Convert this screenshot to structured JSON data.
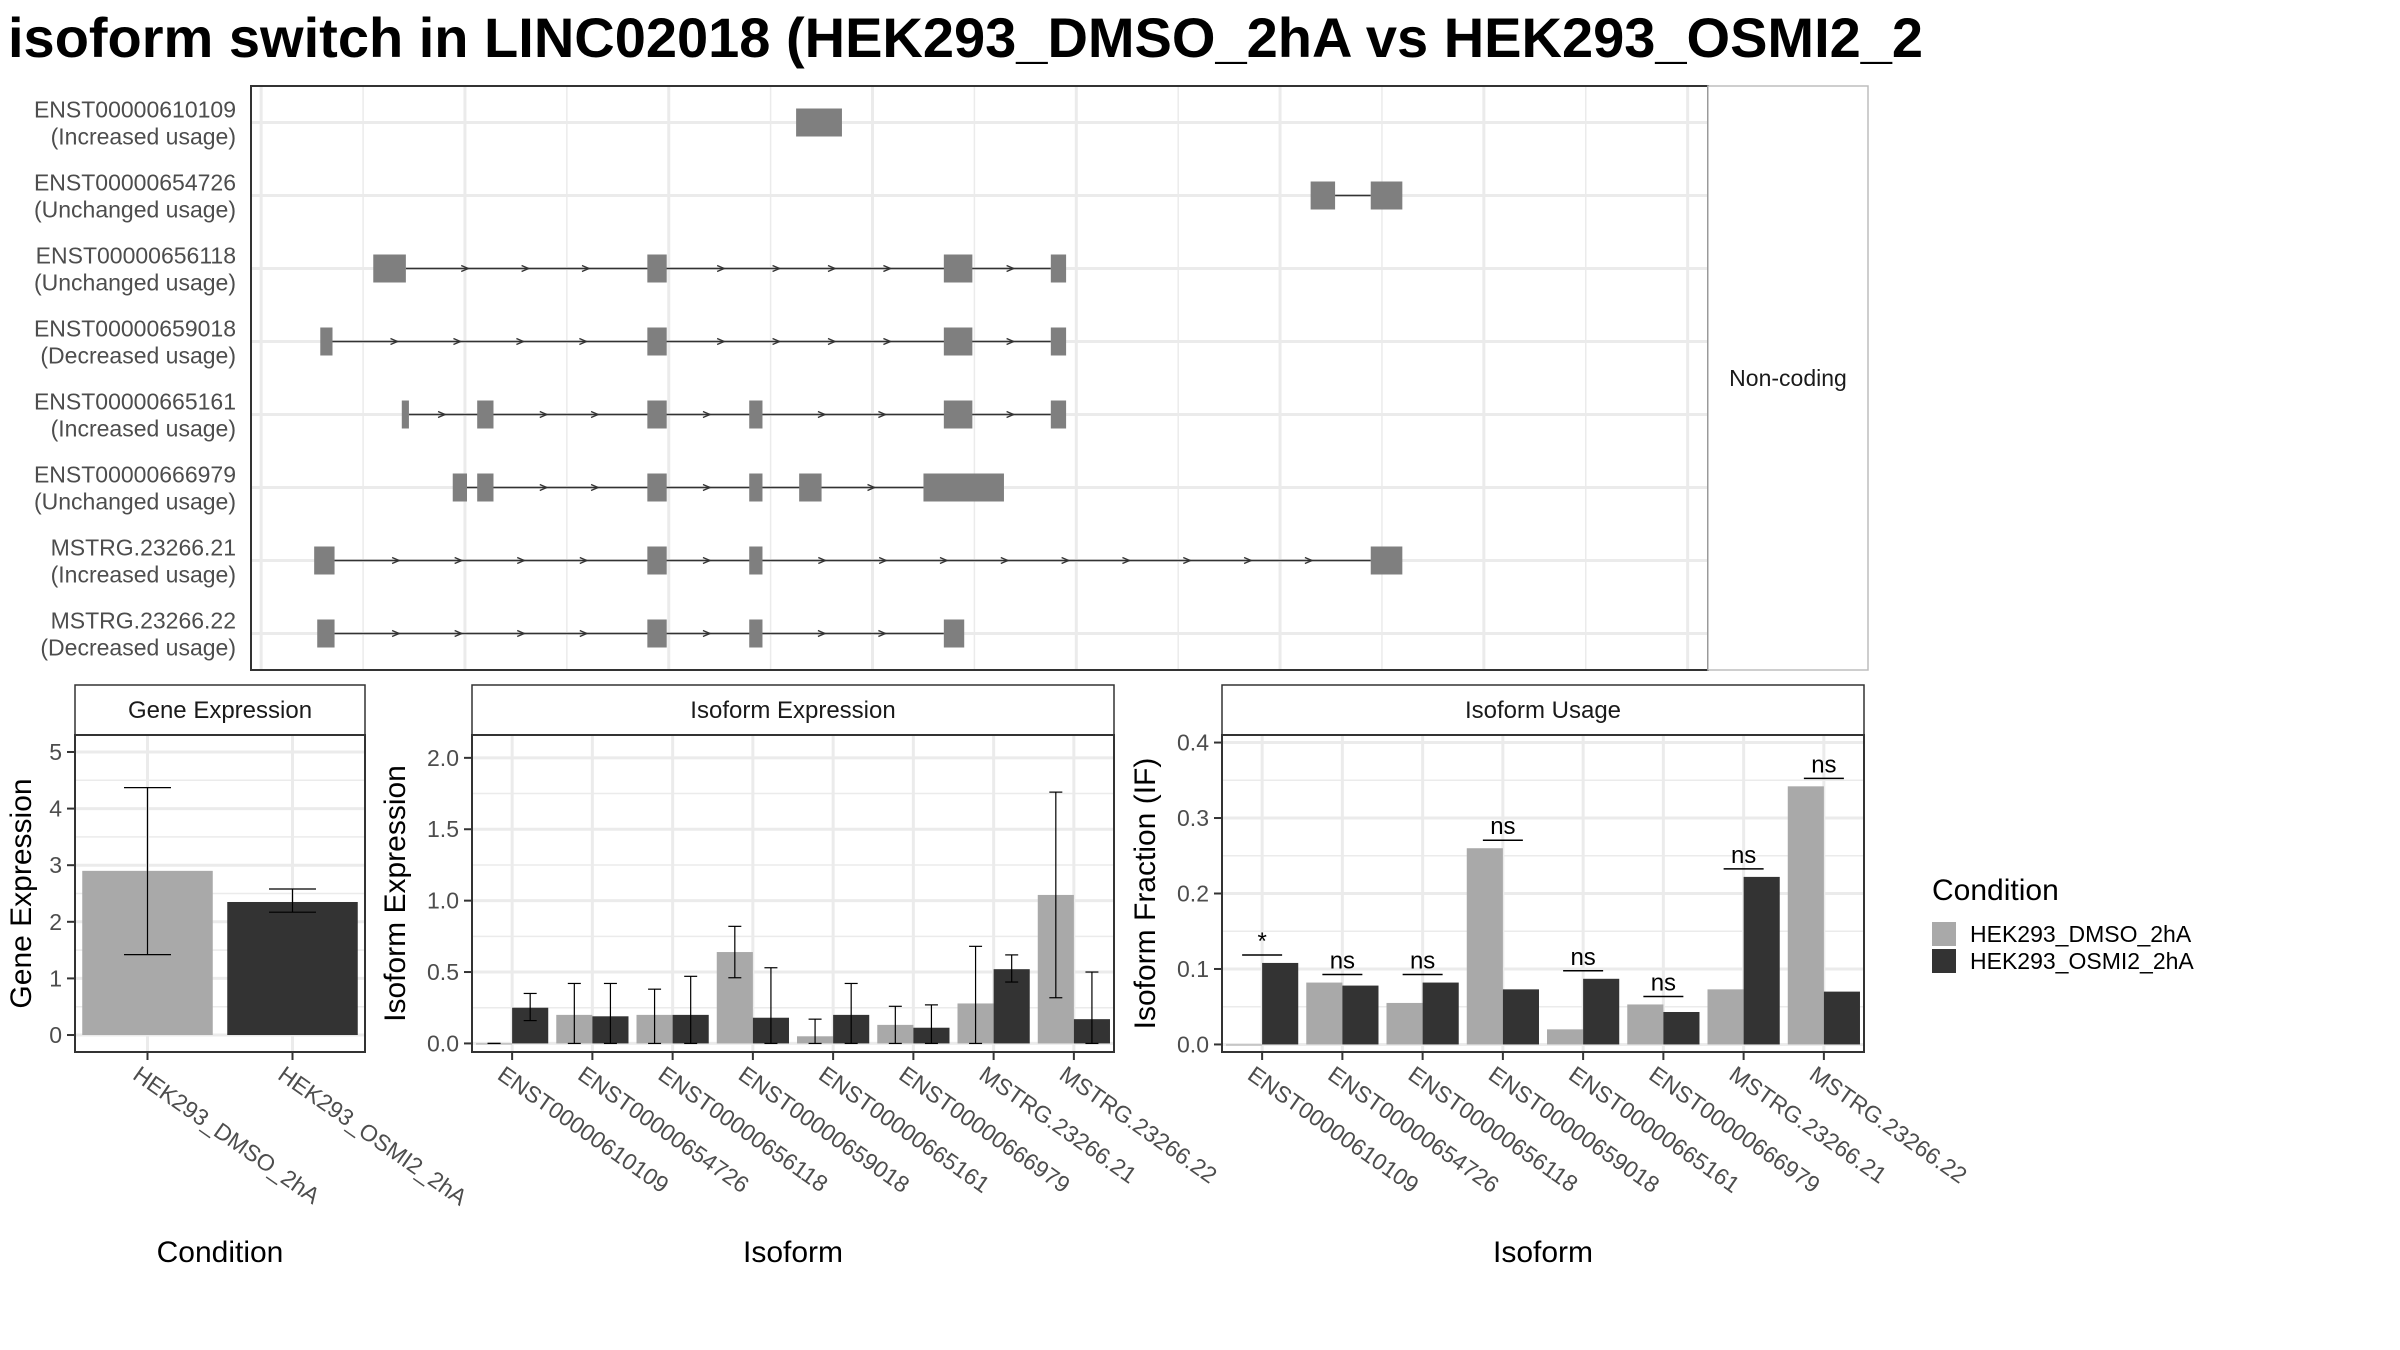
{
  "title": "isoform switch in LINC02018 (HEK293_DMSO_2hA vs HEK293_OSMI2_2",
  "colors": {
    "dmso": "#a9a9a9",
    "osmi": "#333333",
    "exon": "#7f7f7f",
    "intron": "#333333",
    "grid": "#ebebeb",
    "border": "#333333",
    "strip_bg": "#ffffff"
  },
  "chart_data": [
    {
      "type": "gene-structure",
      "strip_label": "Non-coding",
      "transcripts": [
        {
          "name": "ENST00000610109",
          "usage": "(Increased usage)",
          "exons": [
            [
              232.5,
              237.0
            ]
          ]
        },
        {
          "name": "ENST00000654726",
          "usage": "(Unchanged usage)",
          "exons": [
            [
              283.0,
              285.4
            ],
            [
              288.9,
              292.0
            ]
          ]
        },
        {
          "name": "ENST00000656118",
          "usage": "(Unchanged usage)",
          "exons": [
            [
              191.0,
              194.2
            ],
            [
              217.9,
              219.8
            ],
            [
              247.0,
              249.8
            ],
            [
              257.5,
              259.0
            ]
          ]
        },
        {
          "name": "ENST00000659018",
          "usage": "(Decreased usage)",
          "exons": [
            [
              185.8,
              187.0
            ],
            [
              217.9,
              219.8
            ],
            [
              247.0,
              249.8
            ],
            [
              257.5,
              259.0
            ]
          ]
        },
        {
          "name": "ENST00000665161",
          "usage": "(Increased usage)",
          "exons": [
            [
              193.8,
              194.5
            ],
            [
              201.2,
              202.8
            ],
            [
              217.9,
              219.8
            ],
            [
              227.9,
              229.2
            ],
            [
              247.0,
              249.8
            ],
            [
              257.5,
              259.0
            ]
          ]
        },
        {
          "name": "ENST00000666979",
          "usage": "(Unchanged usage)",
          "exons": [
            [
              198.8,
              200.2
            ],
            [
              201.2,
              202.8
            ],
            [
              217.9,
              219.8
            ],
            [
              227.9,
              229.2
            ],
            [
              232.8,
              235.0
            ],
            [
              245.0,
              252.9
            ]
          ]
        },
        {
          "name": "MSTRG.23266.21",
          "usage": "(Increased usage)",
          "exons": [
            [
              185.2,
              187.2
            ],
            [
              217.9,
              219.8
            ],
            [
              227.9,
              229.2
            ],
            [
              288.9,
              292.0
            ]
          ]
        },
        {
          "name": "MSTRG.23266.22",
          "usage": "(Decreased usage)",
          "exons": [
            [
              185.5,
              187.2
            ],
            [
              217.9,
              219.8
            ],
            [
              227.9,
              229.2
            ],
            [
              247.0,
              249.0
            ]
          ]
        }
      ],
      "xlim": [
        179,
        322
      ]
    },
    {
      "type": "bar",
      "title": "Gene Expression",
      "xlabel": "Condition",
      "ylabel": "Gene Expression",
      "categories": [
        "HEK293_DMSO_2hA",
        "HEK293_OSMI2_2hA"
      ],
      "values": [
        2.9,
        2.35
      ],
      "errors": [
        [
          1.42,
          4.37
        ],
        [
          2.17,
          2.58
        ]
      ],
      "ylim": [
        -0.3,
        5.3
      ],
      "yticks": [
        "0",
        "1",
        "2",
        "3",
        "4",
        "5"
      ]
    },
    {
      "type": "bar",
      "title": "Isoform Expression",
      "xlabel": "Isoform",
      "ylabel": "Isoform Expression",
      "categories": [
        "ENST00000610109",
        "ENST00000654726",
        "ENST00000656118",
        "ENST00000659018",
        "ENST00000665161",
        "ENST00000666979",
        "MSTRG.23266.21",
        "MSTRG.23266.22"
      ],
      "series": [
        {
          "name": "HEK293_DMSO_2hA",
          "values": [
            0.0,
            0.2,
            0.2,
            0.64,
            0.05,
            0.13,
            0.28,
            1.04
          ],
          "errors": [
            [
              0.0,
              0.0
            ],
            [
              0.0,
              0.42
            ],
            [
              0.0,
              0.38
            ],
            [
              0.46,
              0.82
            ],
            [
              0.0,
              0.17
            ],
            [
              0.0,
              0.26
            ],
            [
              0.0,
              0.68
            ],
            [
              0.32,
              1.76
            ]
          ]
        },
        {
          "name": "HEK293_OSMI2_2hA",
          "values": [
            0.25,
            0.19,
            0.2,
            0.18,
            0.2,
            0.11,
            0.52,
            0.17
          ],
          "errors": [
            [
              0.16,
              0.35
            ],
            [
              0.0,
              0.42
            ],
            [
              0.0,
              0.47
            ],
            [
              0.0,
              0.53
            ],
            [
              0.0,
              0.42
            ],
            [
              0.0,
              0.27
            ],
            [
              0.43,
              0.62
            ],
            [
              0.0,
              0.5
            ]
          ]
        }
      ],
      "ylim": [
        -0.06,
        2.16
      ],
      "yticks": [
        "0.0",
        "0.5",
        "1.0",
        "1.5",
        "2.0"
      ]
    },
    {
      "type": "bar",
      "title": "Isoform Usage",
      "xlabel": "Isoform",
      "ylabel": "Isoform Fraction (IF)",
      "categories": [
        "ENST00000610109",
        "ENST00000654726",
        "ENST00000656118",
        "ENST00000659018",
        "ENST00000665161",
        "ENST00000666979",
        "MSTRG.23266.21",
        "MSTRG.23266.22"
      ],
      "series": [
        {
          "name": "HEK293_DMSO_2hA",
          "values": [
            0.0,
            0.082,
            0.055,
            0.26,
            0.02,
            0.053,
            0.073,
            0.342
          ]
        },
        {
          "name": "HEK293_OSMI2_2hA",
          "values": [
            0.108,
            0.078,
            0.082,
            0.073,
            0.087,
            0.043,
            0.222,
            0.07
          ]
        }
      ],
      "significance": [
        "*",
        "ns",
        "ns",
        "ns",
        "ns",
        "ns",
        "ns",
        "ns"
      ],
      "ylim": [
        -0.01,
        0.41
      ],
      "yticks": [
        "0.0",
        "0.1",
        "0.2",
        "0.3",
        "0.4"
      ]
    }
  ],
  "legend": {
    "title": "Condition",
    "items": [
      "HEK293_DMSO_2hA",
      "HEK293_OSMI2_2hA"
    ]
  }
}
